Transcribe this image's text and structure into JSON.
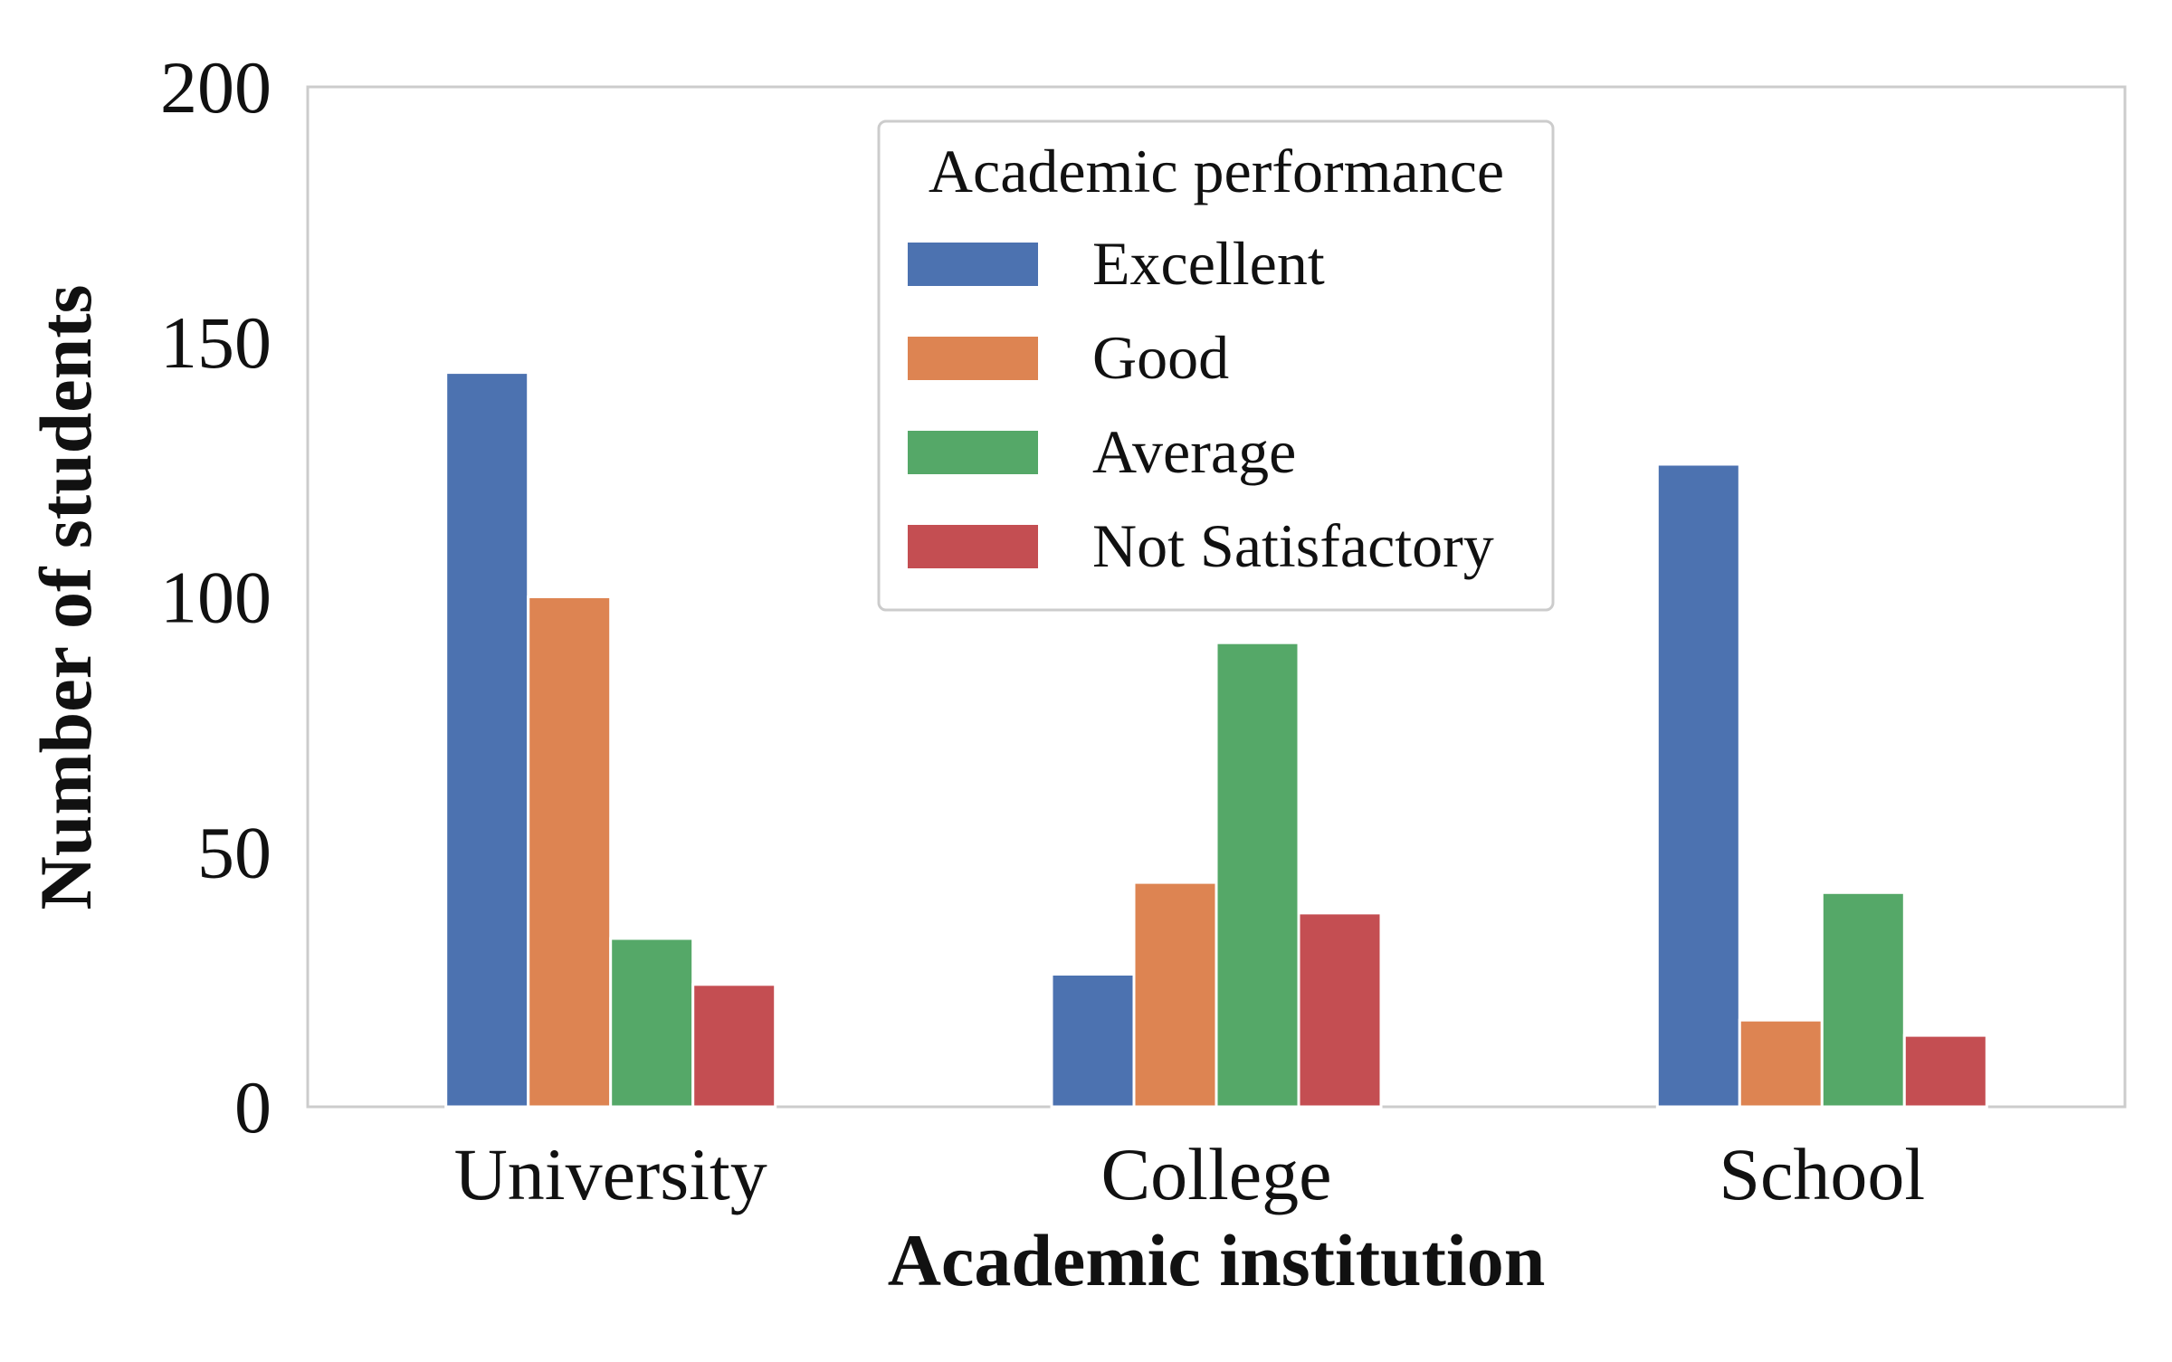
{
  "chart_data": {
    "type": "bar",
    "xlabel": "Academic institution",
    "ylabel": "Number of students",
    "categories": [
      "University",
      "College",
      "School"
    ],
    "ylim": [
      0,
      200
    ],
    "yticks": [
      "0",
      "50",
      "100",
      "150",
      "200"
    ],
    "grid": false,
    "legend": {
      "title": "Academic performance",
      "placement": "top-center"
    },
    "series": [
      {
        "name": "Excellent",
        "color": "#4C72B0",
        "values": [
          144,
          26,
          126
        ]
      },
      {
        "name": "Good",
        "color": "#DD8452",
        "values": [
          100,
          44,
          17
        ]
      },
      {
        "name": "Average",
        "color": "#55A868",
        "values": [
          33,
          91,
          42
        ]
      },
      {
        "name": "Not Satisfactory",
        "color": "#C44E52",
        "values": [
          24,
          38,
          14
        ]
      }
    ]
  }
}
